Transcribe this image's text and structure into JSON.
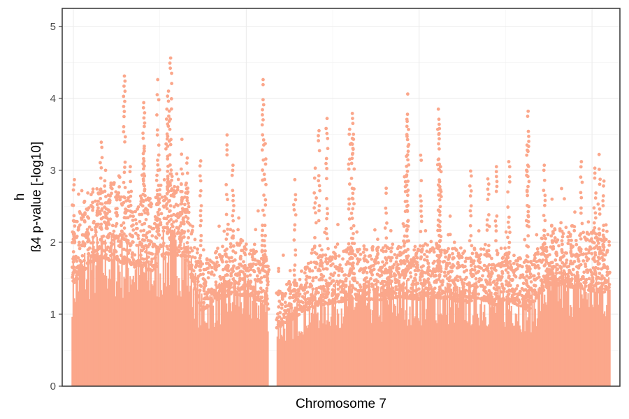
{
  "chart_data": {
    "type": "scatter",
    "title": "",
    "xlabel": "Chromosome 7",
    "ylabel_line1": "h",
    "ylabel_line2": "ß4 p-value [-log10]",
    "ylim": [
      0,
      5.25
    ],
    "yticks": [
      "0",
      "1",
      "2",
      "3",
      "4",
      "5"
    ],
    "xlim": [
      0,
      1
    ],
    "x_ticks_shown": false,
    "grid": true,
    "point_color": "#FBA78B",
    "gap_region": [
      0.366,
      0.38
    ],
    "density_profile": [
      [
        0.0,
        1.75
      ],
      [
        0.03,
        2.1
      ],
      [
        0.06,
        2.2
      ],
      [
        0.09,
        2.15
      ],
      [
        0.12,
        2.05
      ],
      [
        0.15,
        2.0
      ],
      [
        0.18,
        2.3
      ],
      [
        0.21,
        2.25
      ],
      [
        0.24,
        1.3
      ],
      [
        0.27,
        1.5
      ],
      [
        0.3,
        1.6
      ],
      [
        0.33,
        1.55
      ],
      [
        0.36,
        1.45
      ],
      [
        0.38,
        1.0
      ],
      [
        0.4,
        1.1
      ],
      [
        0.43,
        1.3
      ],
      [
        0.46,
        1.4
      ],
      [
        0.49,
        1.45
      ],
      [
        0.52,
        1.5
      ],
      [
        0.55,
        1.5
      ],
      [
        0.58,
        1.5
      ],
      [
        0.61,
        1.55
      ],
      [
        0.64,
        1.5
      ],
      [
        0.67,
        1.55
      ],
      [
        0.7,
        1.5
      ],
      [
        0.73,
        1.45
      ],
      [
        0.76,
        1.5
      ],
      [
        0.79,
        1.4
      ],
      [
        0.82,
        1.45
      ],
      [
        0.85,
        1.3
      ],
      [
        0.88,
        1.7
      ],
      [
        0.91,
        1.75
      ],
      [
        0.94,
        1.7
      ],
      [
        0.97,
        1.65
      ],
      [
        1.0,
        1.6
      ]
    ],
    "peaks": [
      {
        "x": 0.004,
        "y": 2.87
      },
      {
        "x": 0.054,
        "y": 3.39
      },
      {
        "x": 0.062,
        "y": 3.0
      },
      {
        "x": 0.097,
        "y": 4.31
      },
      {
        "x": 0.108,
        "y": 3.05
      },
      {
        "x": 0.133,
        "y": 3.94
      },
      {
        "x": 0.134,
        "y": 3.61
      },
      {
        "x": 0.159,
        "y": 4.26
      },
      {
        "x": 0.161,
        "y": 3.35
      },
      {
        "x": 0.183,
        "y": 4.56
      },
      {
        "x": 0.179,
        "y": 4.1
      },
      {
        "x": 0.176,
        "y": 3.85
      },
      {
        "x": 0.204,
        "y": 3.43
      },
      {
        "x": 0.214,
        "y": 3.17
      },
      {
        "x": 0.239,
        "y": 3.13
      },
      {
        "x": 0.288,
        "y": 3.49
      },
      {
        "x": 0.299,
        "y": 3.07
      },
      {
        "x": 0.355,
        "y": 4.26
      },
      {
        "x": 0.359,
        "y": 3.37
      },
      {
        "x": 0.414,
        "y": 2.87
      },
      {
        "x": 0.452,
        "y": 3.03
      },
      {
        "x": 0.459,
        "y": 3.55
      },
      {
        "x": 0.474,
        "y": 3.72
      },
      {
        "x": 0.516,
        "y": 3.57
      },
      {
        "x": 0.521,
        "y": 3.79
      },
      {
        "x": 0.523,
        "y": 3.5
      },
      {
        "x": 0.584,
        "y": 2.75
      },
      {
        "x": 0.618,
        "y": 2.91
      },
      {
        "x": 0.624,
        "y": 4.06
      },
      {
        "x": 0.623,
        "y": 3.68
      },
      {
        "x": 0.648,
        "y": 3.21
      },
      {
        "x": 0.681,
        "y": 3.85
      },
      {
        "x": 0.683,
        "y": 3.58
      },
      {
        "x": 0.685,
        "y": 3.05
      },
      {
        "x": 0.741,
        "y": 2.99
      },
      {
        "x": 0.773,
        "y": 2.88
      },
      {
        "x": 0.789,
        "y": 3.05
      },
      {
        "x": 0.812,
        "y": 3.12
      },
      {
        "x": 0.848,
        "y": 3.82
      },
      {
        "x": 0.846,
        "y": 3.35
      },
      {
        "x": 0.878,
        "y": 3.07
      },
      {
        "x": 0.947,
        "y": 3.12
      },
      {
        "x": 0.972,
        "y": 3.03
      },
      {
        "x": 0.98,
        "y": 3.22
      },
      {
        "x": 0.989,
        "y": 2.85
      }
    ]
  }
}
